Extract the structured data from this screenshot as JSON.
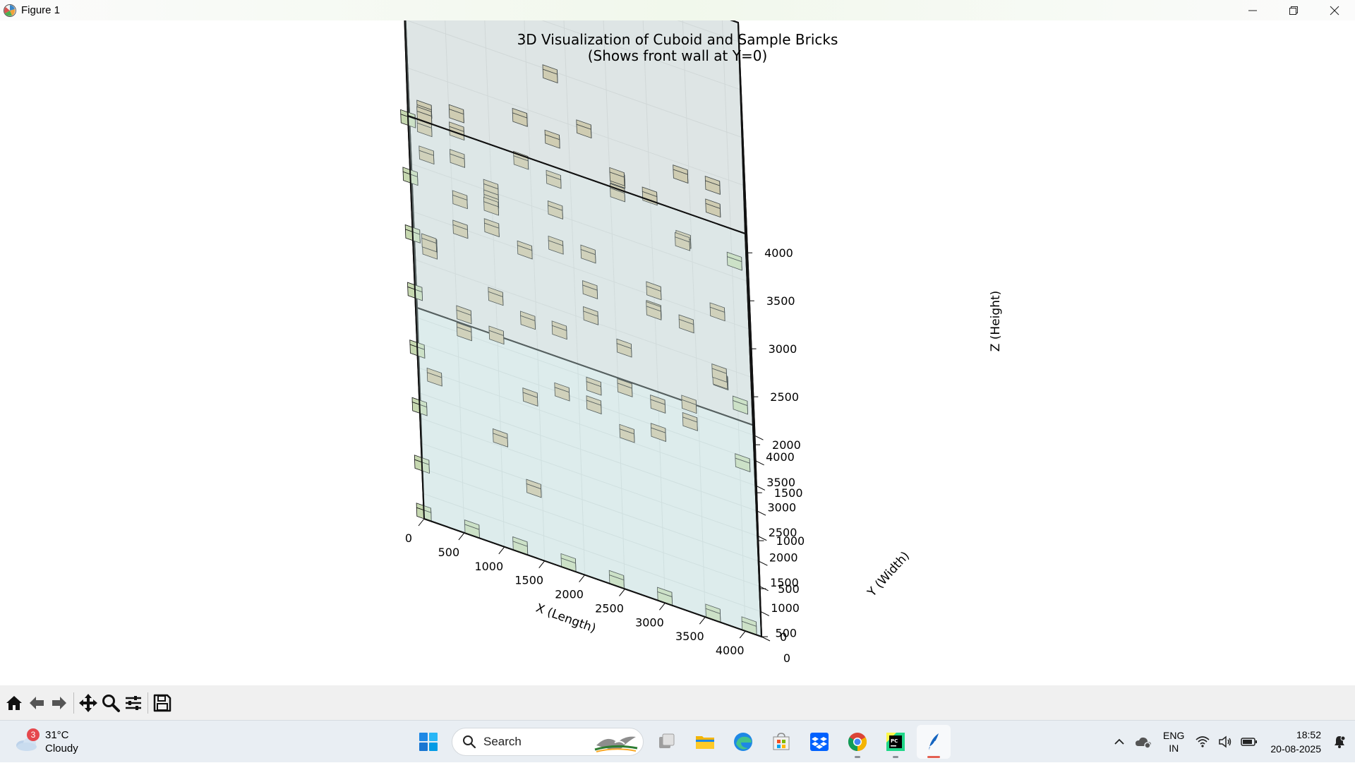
{
  "window": {
    "title": "Figure 1",
    "controls": [
      "minimize-icon",
      "restore-icon",
      "close-icon"
    ]
  },
  "chart_data": {
    "type": "3d-scatter",
    "title": "3D Visualization of Cuboid and Sample Bricks",
    "subtitle": "(Shows front wall at Y=0)",
    "xlabel": "X (Length)",
    "ylabel": "Y (Width)",
    "zlabel": "Z (Height)",
    "xlim": [
      0,
      4200
    ],
    "ylim": [
      0,
      4200
    ],
    "zlim": [
      0,
      4200
    ],
    "x_ticks": [
      0,
      500,
      1000,
      1500,
      2000,
      2500,
      3000,
      3500,
      4000
    ],
    "y_ticks": [
      0,
      500,
      1000,
      1500,
      2000,
      2500,
      3000,
      3500,
      4000
    ],
    "z_ticks": [
      0,
      500,
      1000,
      1500,
      2000,
      2500,
      3000,
      3500,
      4000
    ],
    "grid": true,
    "cuboid": {
      "length": 4200,
      "width": 4200,
      "height": 4200,
      "color": "#d8f4f4"
    },
    "inner_wall_color": "#d6d6d6",
    "series": [
      {
        "color": "#cdbf9d",
        "points": [
          [
            200,
            700,
            3700
          ],
          [
            200,
            700,
            2500
          ],
          [
            200,
            700,
            1100
          ],
          [
            200,
            1700,
            3300
          ],
          [
            200,
            1700,
            1900
          ],
          [
            200,
            2400,
            3000
          ],
          [
            200,
            2400,
            1600
          ],
          [
            200,
            3400,
            2000
          ],
          [
            600,
            300,
            1900
          ],
          [
            600,
            500,
            3600
          ],
          [
            600,
            1000,
            2600
          ],
          [
            600,
            1400,
            1500
          ],
          [
            600,
            2000,
            3100
          ],
          [
            600,
            3300,
            2600
          ],
          [
            600,
            3500,
            1600
          ],
          [
            1000,
            300,
            3100
          ],
          [
            1000,
            700,
            700
          ],
          [
            1000,
            1300,
            2800
          ],
          [
            1000,
            1600,
            1300
          ],
          [
            1000,
            2400,
            2300
          ],
          [
            1000,
            2800,
            2200
          ],
          [
            1000,
            3900,
            500
          ],
          [
            1400,
            300,
            500
          ],
          [
            1400,
            400,
            1400
          ],
          [
            1400,
            1100,
            3500
          ],
          [
            1400,
            1800,
            2200
          ],
          [
            1400,
            2500,
            1100
          ],
          [
            1400,
            3100,
            2900
          ],
          [
            1800,
            400,
            3100
          ],
          [
            1800,
            1000,
            1900
          ],
          [
            1800,
            1300,
            1100
          ],
          [
            1800,
            1900,
            3000
          ],
          [
            1800,
            2700,
            3000
          ],
          [
            1800,
            3200,
            2000
          ],
          [
            1800,
            4000,
            3000
          ],
          [
            2200,
            500,
            1500
          ],
          [
            2200,
            1400,
            2600
          ],
          [
            2200,
            1700,
            1800
          ],
          [
            2200,
            2400,
            700
          ],
          [
            2200,
            2600,
            1600
          ],
          [
            2200,
            3700,
            2700
          ],
          [
            2600,
            300,
            1900
          ],
          [
            2600,
            1300,
            900
          ],
          [
            2600,
            1700,
            3200
          ],
          [
            2600,
            2400,
            3000
          ],
          [
            2600,
            3000,
            900
          ],
          [
            2600,
            3500,
            2400
          ],
          [
            3000,
            400,
            1500
          ],
          [
            3000,
            1100,
            2400
          ],
          [
            3000,
            1700,
            2100
          ],
          [
            3000,
            2300,
            800
          ],
          [
            3000,
            3000,
            2600
          ],
          [
            3000,
            3600,
            1300
          ],
          [
            3400,
            600,
            3500
          ],
          [
            3400,
            800,
            1700
          ],
          [
            3400,
            1600,
            1100
          ],
          [
            3400,
            2400,
            1700
          ],
          [
            3400,
            2900,
            3000
          ],
          [
            3400,
            3700,
            1900
          ],
          [
            3800,
            500,
            2300
          ],
          [
            3800,
            1300,
            3600
          ],
          [
            3800,
            1700,
            1600
          ],
          [
            3800,
            2100,
            2100
          ],
          [
            3800,
            2900,
            3000
          ],
          [
            3800,
            3400,
            700
          ]
        ]
      },
      {
        "color": "#c6d8b0",
        "points": [
          [
            0,
            0,
            4100
          ],
          [
            0,
            0,
            3500
          ],
          [
            0,
            0,
            2900
          ],
          [
            0,
            0,
            2300
          ],
          [
            0,
            0,
            1700
          ],
          [
            0,
            0,
            1100
          ],
          [
            0,
            0,
            500
          ],
          [
            0,
            0,
            0
          ],
          [
            600,
            0,
            0
          ],
          [
            1200,
            0,
            0
          ],
          [
            1800,
            0,
            0
          ],
          [
            2400,
            0,
            0
          ],
          [
            3000,
            0,
            0
          ],
          [
            3600,
            0,
            0
          ],
          [
            4050,
            0,
            0
          ],
          [
            4050,
            0,
            3800
          ],
          [
            4050,
            0,
            2300
          ],
          [
            4050,
            0,
            1700
          ]
        ]
      }
    ]
  },
  "toolbar": {
    "buttons": [
      "home-icon",
      "back-icon",
      "forward-icon",
      "pan-icon",
      "zoom-icon",
      "configure-subplots-icon",
      "save-icon"
    ]
  },
  "taskbar": {
    "weather": {
      "temp": "31°C",
      "condition": "Cloudy",
      "badge": "3"
    },
    "search_placeholder": "Search",
    "apps": [
      "windows-start-icon",
      "task-view-icon",
      "file-explorer-icon",
      "edge-icon",
      "microsoft-store-icon",
      "dropbox-icon",
      "chrome-icon",
      "pycharm-icon",
      "python-feather-icon"
    ],
    "language": {
      "line1": "ENG",
      "line2": "IN"
    },
    "clock": {
      "time": "18:52",
      "date": "20-08-2025"
    }
  }
}
